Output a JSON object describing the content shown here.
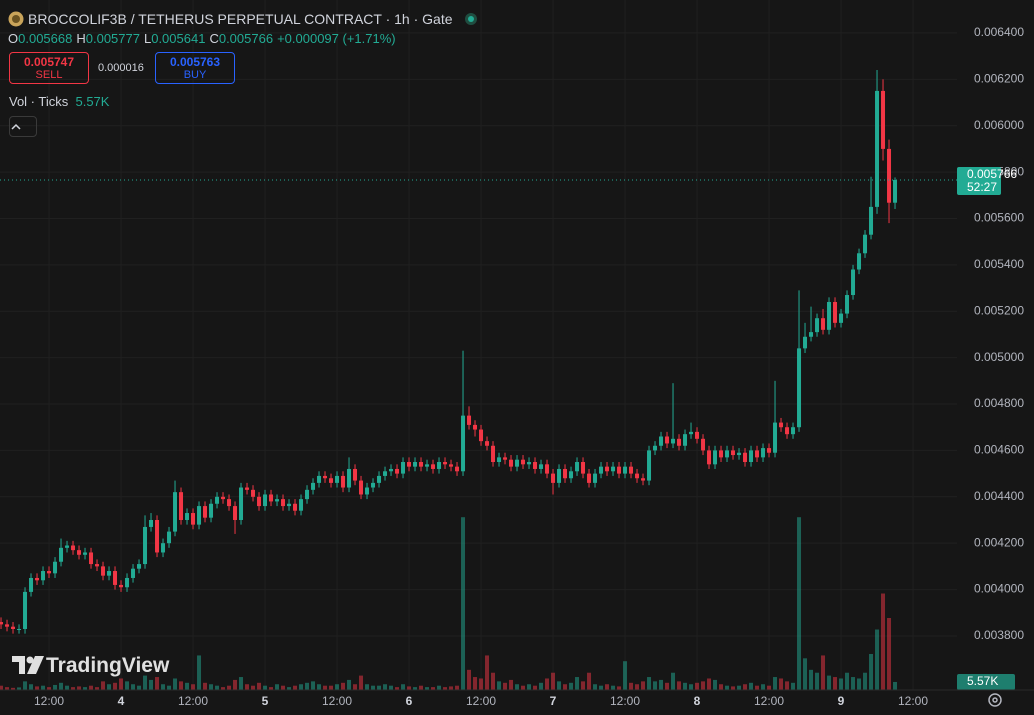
{
  "header": {
    "title": "BROCCOLIF3B / TETHERUS PERPETUAL CONTRACT · 1h · Gate",
    "ohlc": [
      {
        "label": "O",
        "value": "0.005668"
      },
      {
        "label": "H",
        "value": "0.005777"
      },
      {
        "label": "L",
        "value": "0.005641"
      },
      {
        "label": "C",
        "value": "0.005766"
      }
    ],
    "change": "+0.000097 (+1.71%)",
    "sell_price": "0.005747",
    "sell_label": "SELL",
    "spread": "0.000016",
    "buy_price": "0.005763",
    "buy_label": "BUY",
    "volume_indicator": "Vol · Ticks",
    "volume_indicator_value": "5.57K",
    "watermark": "TradingView"
  },
  "chart_data": {
    "type": "candlestick",
    "x": [
      -8,
      -7,
      -6,
      -5,
      -4,
      -3,
      -2,
      -1,
      0,
      1,
      2,
      3,
      4,
      5,
      6,
      7,
      8,
      9,
      10,
      11,
      12,
      13,
      14,
      15,
      16,
      17,
      18,
      19,
      20,
      21,
      22,
      23,
      24,
      25,
      26,
      27,
      28,
      29,
      30,
      31,
      32,
      33,
      34,
      35,
      36,
      37,
      38,
      39,
      40,
      41,
      42,
      43,
      44,
      45,
      46,
      47,
      48,
      49,
      50,
      51,
      52,
      53,
      54,
      55,
      56,
      57,
      58,
      59,
      60,
      61,
      62,
      63,
      64,
      65,
      66,
      67,
      68,
      69,
      70,
      71,
      72,
      73,
      74,
      75,
      76,
      77,
      78,
      79,
      80,
      81,
      82,
      83,
      84,
      85,
      86,
      87,
      88,
      89,
      90,
      91,
      92,
      93,
      94,
      95,
      96,
      97,
      98,
      99,
      100,
      101,
      102,
      103,
      104,
      105,
      106,
      107,
      108,
      109,
      110,
      111,
      112,
      113,
      114,
      115,
      116,
      117,
      118,
      119,
      120,
      121,
      122,
      123,
      124,
      125,
      126,
      127,
      128,
      129,
      130,
      131,
      132,
      133,
      134,
      135,
      136,
      137,
      138,
      139,
      140,
      141
    ],
    "open": [
      0.00386,
      0.00385,
      0.00384,
      0.00383,
      0.00383,
      0.00399,
      0.00405,
      0.00404,
      0.00408,
      0.00407,
      0.00412,
      0.00418,
      0.00419,
      0.00417,
      0.00415,
      0.00416,
      0.00411,
      0.0041,
      0.00406,
      0.00408,
      0.00402,
      0.00401,
      0.00405,
      0.00409,
      0.00411,
      0.00427,
      0.0043,
      0.00416,
      0.0042,
      0.00425,
      0.00442,
      0.0043,
      0.00433,
      0.00428,
      0.00436,
      0.00431,
      0.00437,
      0.0044,
      0.00439,
      0.00436,
      0.0043,
      0.00444,
      0.00443,
      0.0044,
      0.00436,
      0.00441,
      0.00438,
      0.00439,
      0.00436,
      0.00437,
      0.00434,
      0.00439,
      0.00443,
      0.00446,
      0.00449,
      0.00448,
      0.00446,
      0.00449,
      0.00444,
      0.00452,
      0.00447,
      0.00441,
      0.00444,
      0.00446,
      0.00449,
      0.00451,
      0.00452,
      0.0045,
      0.00455,
      0.00453,
      0.00455,
      0.00453,
      0.00454,
      0.00452,
      0.00455,
      0.00454,
      0.00453,
      0.00451,
      0.00475,
      0.00471,
      0.00469,
      0.00464,
      0.00462,
      0.00455,
      0.00457,
      0.00456,
      0.00453,
      0.00456,
      0.00454,
      0.00455,
      0.00452,
      0.00454,
      0.0045,
      0.00446,
      0.00452,
      0.00448,
      0.00451,
      0.00455,
      0.0045,
      0.00446,
      0.0045,
      0.00453,
      0.00451,
      0.00453,
      0.0045,
      0.00453,
      0.0045,
      0.00448,
      0.00447,
      0.0046,
      0.00462,
      0.00466,
      0.00463,
      0.00465,
      0.00462,
      0.00467,
      0.00468,
      0.00465,
      0.0046,
      0.00454,
      0.0046,
      0.00457,
      0.0046,
      0.00458,
      0.00459,
      0.00455,
      0.0046,
      0.00457,
      0.00461,
      0.00459,
      0.00472,
      0.0047,
      0.00467,
      0.0047,
      0.00504,
      0.00509,
      0.00511,
      0.00517,
      0.00512,
      0.00524,
      0.00515,
      0.00519,
      0.00527,
      0.00538,
      0.00545,
      0.00553,
      0.00565,
      0.00615,
      0.0059,
      0.005668
    ],
    "high": [
      0.00388,
      0.00387,
      0.00386,
      0.00385,
      0.00401,
      0.00407,
      0.00407,
      0.0041,
      0.0041,
      0.00414,
      0.00422,
      0.00421,
      0.00421,
      0.00419,
      0.00418,
      0.00418,
      0.00413,
      0.00412,
      0.0041,
      0.0041,
      0.00404,
      0.00407,
      0.00411,
      0.00413,
      0.00432,
      0.00433,
      0.00432,
      0.00422,
      0.00427,
      0.00447,
      0.00444,
      0.00435,
      0.00435,
      0.00438,
      0.00438,
      0.00439,
      0.00442,
      0.00442,
      0.00441,
      0.00438,
      0.00446,
      0.00446,
      0.00445,
      0.00442,
      0.00443,
      0.00443,
      0.00441,
      0.00441,
      0.00439,
      0.00439,
      0.00441,
      0.00445,
      0.00448,
      0.00451,
      0.00451,
      0.0045,
      0.00451,
      0.00451,
      0.00457,
      0.00454,
      0.00449,
      0.00446,
      0.00448,
      0.00451,
      0.00453,
      0.00454,
      0.00454,
      0.00457,
      0.00457,
      0.00457,
      0.00457,
      0.00456,
      0.00456,
      0.00457,
      0.00457,
      0.00456,
      0.00455,
      0.00503,
      0.00479,
      0.00473,
      0.00471,
      0.00466,
      0.00464,
      0.00459,
      0.00459,
      0.00458,
      0.00458,
      0.00458,
      0.00457,
      0.00457,
      0.00456,
      0.00456,
      0.00452,
      0.00454,
      0.00454,
      0.00453,
      0.00457,
      0.00457,
      0.00452,
      0.00452,
      0.00455,
      0.00455,
      0.00455,
      0.00455,
      0.00455,
      0.00455,
      0.00452,
      0.0045,
      0.00462,
      0.00464,
      0.00468,
      0.00468,
      0.00489,
      0.00467,
      0.00469,
      0.00472,
      0.0047,
      0.00467,
      0.00462,
      0.00462,
      0.00462,
      0.00462,
      0.00462,
      0.00461,
      0.00461,
      0.00462,
      0.00462,
      0.00463,
      0.00463,
      0.0049,
      0.00474,
      0.00472,
      0.00472,
      0.00529,
      0.00515,
      0.00522,
      0.00519,
      0.00521,
      0.00526,
      0.00526,
      0.00521,
      0.00529,
      0.0054,
      0.00547,
      0.00555,
      0.00578,
      0.00624,
      0.0062,
      0.00594,
      0.005777
    ],
    "low": [
      0.00383,
      0.00382,
      0.00381,
      0.00381,
      0.00381,
      0.00397,
      0.00402,
      0.00402,
      0.00405,
      0.00405,
      0.0041,
      0.00416,
      0.00415,
      0.00413,
      0.00413,
      0.00409,
      0.00408,
      0.00404,
      0.00404,
      0.004,
      0.00399,
      0.00399,
      0.00403,
      0.00407,
      0.00409,
      0.00425,
      0.00414,
      0.00414,
      0.00418,
      0.00423,
      0.00428,
      0.00428,
      0.00426,
      0.00426,
      0.00429,
      0.00429,
      0.00435,
      0.00437,
      0.00434,
      0.00424,
      0.00428,
      0.00441,
      0.00438,
      0.00434,
      0.00434,
      0.00436,
      0.00436,
      0.00434,
      0.00434,
      0.00432,
      0.00432,
      0.00437,
      0.00441,
      0.00444,
      0.00446,
      0.00444,
      0.00444,
      0.00442,
      0.00442,
      0.00445,
      0.00439,
      0.00439,
      0.00442,
      0.00444,
      0.00447,
      0.00449,
      0.00448,
      0.00448,
      0.00451,
      0.00451,
      0.00451,
      0.00451,
      0.0045,
      0.0045,
      0.00452,
      0.00451,
      0.00449,
      0.00449,
      0.00469,
      0.00466,
      0.00462,
      0.0046,
      0.00453,
      0.00453,
      0.00454,
      0.00451,
      0.00451,
      0.00452,
      0.00452,
      0.0045,
      0.0045,
      0.00448,
      0.00441,
      0.00444,
      0.00446,
      0.00446,
      0.00449,
      0.00448,
      0.00444,
      0.00444,
      0.00448,
      0.00449,
      0.00449,
      0.00448,
      0.00448,
      0.00448,
      0.00446,
      0.00445,
      0.00445,
      0.00458,
      0.0046,
      0.00461,
      0.00461,
      0.0046,
      0.0046,
      0.00465,
      0.00463,
      0.00458,
      0.00452,
      0.00452,
      0.00455,
      0.00455,
      0.00456,
      0.00456,
      0.00453,
      0.00453,
      0.00455,
      0.00455,
      0.00457,
      0.00457,
      0.00468,
      0.00465,
      0.00465,
      0.00468,
      0.00502,
      0.00507,
      0.00509,
      0.0051,
      0.0051,
      0.00513,
      0.00513,
      0.00517,
      0.00525,
      0.00536,
      0.00543,
      0.00551,
      0.00562,
      0.00585,
      0.00558,
      0.005641
    ],
    "close": [
      0.00385,
      0.00384,
      0.00383,
      0.00383,
      0.00399,
      0.00405,
      0.00404,
      0.00408,
      0.00407,
      0.00412,
      0.00418,
      0.00419,
      0.00417,
      0.00415,
      0.00416,
      0.00411,
      0.0041,
      0.00406,
      0.00408,
      0.00402,
      0.00401,
      0.00405,
      0.00409,
      0.00411,
      0.00427,
      0.0043,
      0.00416,
      0.0042,
      0.00425,
      0.00442,
      0.0043,
      0.00433,
      0.00428,
      0.00436,
      0.00431,
      0.00437,
      0.0044,
      0.00439,
      0.00436,
      0.0043,
      0.00444,
      0.00443,
      0.0044,
      0.00436,
      0.00441,
      0.00438,
      0.00439,
      0.00436,
      0.00437,
      0.00434,
      0.00439,
      0.00443,
      0.00446,
      0.00449,
      0.00448,
      0.00446,
      0.00449,
      0.00444,
      0.00452,
      0.00447,
      0.00441,
      0.00444,
      0.00446,
      0.00449,
      0.00451,
      0.00452,
      0.0045,
      0.00455,
      0.00453,
      0.00455,
      0.00453,
      0.00454,
      0.00452,
      0.00455,
      0.00454,
      0.00453,
      0.00451,
      0.00475,
      0.00471,
      0.00469,
      0.00464,
      0.00462,
      0.00455,
      0.00457,
      0.00456,
      0.00453,
      0.00456,
      0.00454,
      0.00455,
      0.00452,
      0.00454,
      0.0045,
      0.00446,
      0.00452,
      0.00448,
      0.00451,
      0.00455,
      0.0045,
      0.00446,
      0.0045,
      0.00453,
      0.00451,
      0.00453,
      0.0045,
      0.00453,
      0.0045,
      0.00448,
      0.00447,
      0.0046,
      0.00462,
      0.00466,
      0.00463,
      0.00465,
      0.00462,
      0.00467,
      0.00468,
      0.00465,
      0.0046,
      0.00454,
      0.0046,
      0.00457,
      0.0046,
      0.00458,
      0.00459,
      0.00455,
      0.0046,
      0.00457,
      0.00461,
      0.00459,
      0.00472,
      0.0047,
      0.00467,
      0.0047,
      0.00504,
      0.00509,
      0.00511,
      0.00517,
      0.00512,
      0.00524,
      0.00515,
      0.00519,
      0.00527,
      0.00538,
      0.00545,
      0.00553,
      0.00565,
      0.00615,
      0.0059,
      0.005668,
      0.005766
    ],
    "volume": [
      3000,
      2000,
      1500,
      1800,
      6000,
      4000,
      2500,
      3000,
      2000,
      3500,
      5000,
      3000,
      2000,
      2500,
      2000,
      3000,
      2000,
      6000,
      4000,
      5000,
      8000,
      6000,
      4000,
      3000,
      10000,
      7000,
      9000,
      4000,
      3000,
      8000,
      6000,
      5000,
      4000,
      24000,
      5000,
      4000,
      3000,
      2000,
      3000,
      7000,
      9000,
      4000,
      3000,
      5000,
      3000,
      2000,
      4000,
      3000,
      2000,
      3000,
      4000,
      5000,
      6000,
      4000,
      3000,
      3000,
      4000,
      5000,
      7000,
      4000,
      10000,
      4000,
      3000,
      3000,
      4000,
      3000,
      2000,
      4000,
      2500,
      2000,
      3000,
      2000,
      2000,
      3000,
      2000,
      2500,
      3000,
      120000,
      14000,
      9000,
      8000,
      24000,
      12000,
      6000,
      5000,
      7000,
      4000,
      3000,
      4000,
      3000,
      5000,
      8000,
      12000,
      6000,
      4000,
      5000,
      9000,
      6000,
      12000,
      4000,
      3000,
      4000,
      3000,
      2500,
      20000,
      5000,
      4000,
      6000,
      9000,
      6000,
      7000,
      5000,
      12000,
      6000,
      5000,
      4000,
      5000,
      6000,
      8000,
      7000,
      4000,
      3000,
      2500,
      3000,
      4000,
      5000,
      3000,
      4000,
      3000,
      9000,
      8000,
      6000,
      5000,
      120000,
      22000,
      14000,
      12000,
      24000,
      10000,
      9000,
      8000,
      12000,
      9000,
      8000,
      12000,
      25000,
      42000,
      67000,
      50000,
      5570
    ],
    "up_color": "#22ab94",
    "down_color": "#f23645",
    "xlim": [
      -8.17,
      151.33
    ],
    "xticks": [
      {
        "value": 0,
        "label": "12:00"
      },
      {
        "value": 12,
        "label": "4"
      },
      {
        "value": 24,
        "label": "12:00"
      },
      {
        "value": 36,
        "label": "5"
      },
      {
        "value": 48,
        "label": "12:00"
      },
      {
        "value": 60,
        "label": "6"
      },
      {
        "value": 72,
        "label": "12:00"
      },
      {
        "value": 84,
        "label": "7"
      },
      {
        "value": 96,
        "label": "12:00"
      },
      {
        "value": 108,
        "label": "8"
      },
      {
        "value": 120,
        "label": "12:00"
      },
      {
        "value": 132,
        "label": "9"
      },
      {
        "value": 144,
        "label": "12:00"
      }
    ],
    "ylim": [
      0.003567,
      0.006542
    ],
    "yticks": [
      {
        "value": 0.0038,
        "label": "0.003800"
      },
      {
        "value": 0.004,
        "label": "0.004000"
      },
      {
        "value": 0.0042,
        "label": "0.004200"
      },
      {
        "value": 0.0044,
        "label": "0.004400"
      },
      {
        "value": 0.0046,
        "label": "0.004600"
      },
      {
        "value": 0.0048,
        "label": "0.004800"
      },
      {
        "value": 0.005,
        "label": "0.005000"
      },
      {
        "value": 0.0052,
        "label": "0.005200"
      },
      {
        "value": 0.0054,
        "label": "0.005400"
      },
      {
        "value": 0.0056,
        "label": "0.005600"
      },
      {
        "value": 0.0058,
        "label": "0.005800"
      },
      {
        "value": 0.006,
        "label": "0.006000"
      },
      {
        "value": 0.0062,
        "label": "0.006200"
      },
      {
        "value": 0.0064,
        "label": "0.006400"
      }
    ],
    "y2lim": [
      0,
      250000
    ],
    "grid": true,
    "last_price_label": "0.005766",
    "countdown": "52:27",
    "volume_label": "5.57K"
  }
}
